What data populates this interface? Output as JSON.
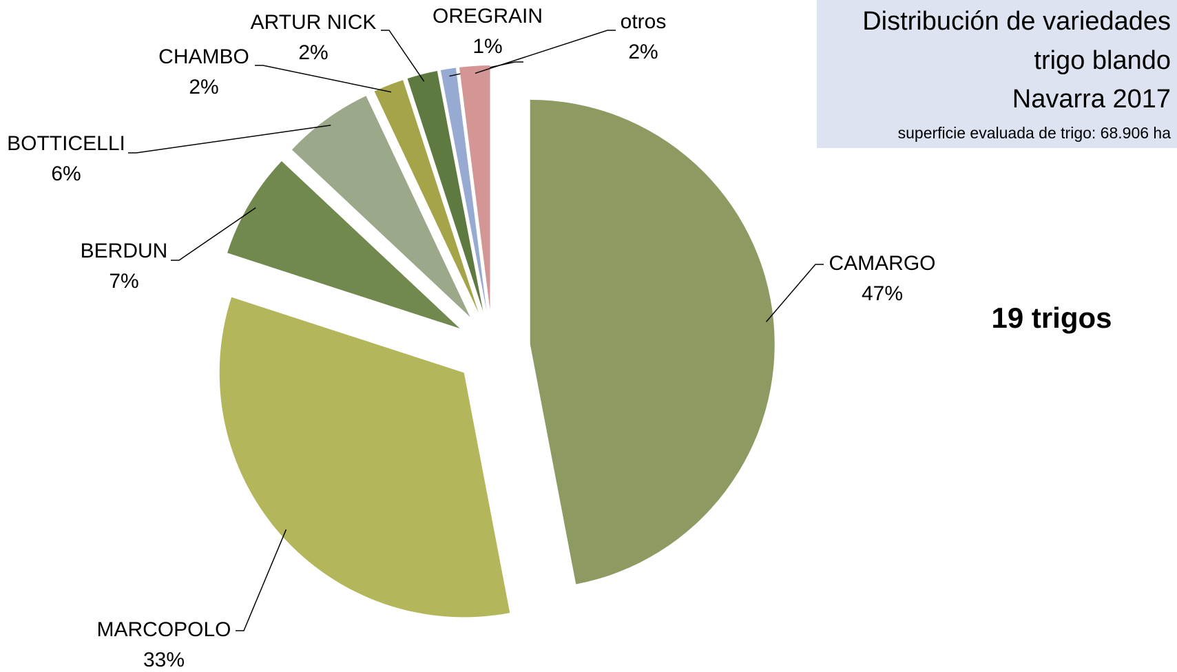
{
  "chart_data": {
    "type": "pie",
    "title": [
      "Distribución de variedades",
      "trigo blando",
      "Navarra 2017"
    ],
    "subtitle": "superficie evaluada de trigo:  68.906 ha",
    "annotation": "19 trigos",
    "categories": [
      "CAMARGO",
      "MARCOPOLO",
      "BERDUN",
      "BOTTICELLI",
      "CHAMBO",
      "ARTUR NICK",
      "OREGRAIN",
      "otros"
    ],
    "values": [
      47,
      33,
      7,
      6,
      2,
      2,
      1,
      2
    ],
    "value_labels": [
      "47%",
      "33%",
      "7%",
      "6%",
      "2%",
      "2%",
      "1%",
      "2%"
    ],
    "colors": [
      "#8d9b62",
      "#b4b65c",
      "#71894f",
      "#9ba88a",
      "#a6a449",
      "#5e7a41",
      "#97aad2",
      "#d49595"
    ]
  }
}
